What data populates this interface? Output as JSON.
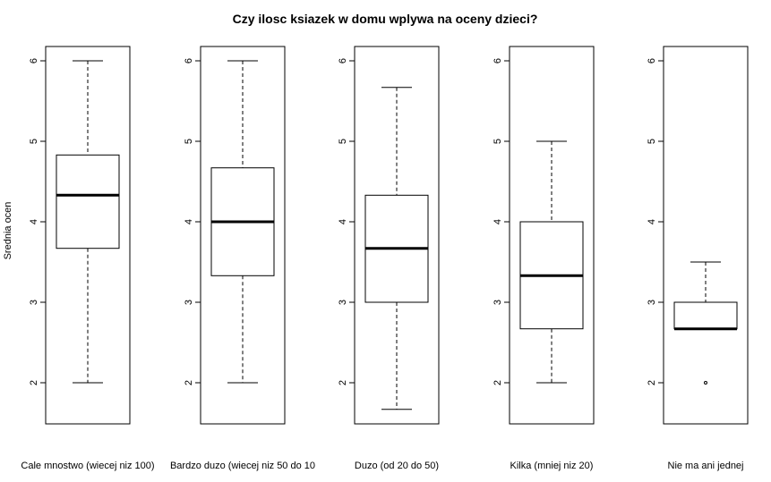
{
  "chart_data": {
    "type": "boxplot",
    "title": "Czy ilosc ksiazek w domu wplywa na oceny dzieci?",
    "ylabel": "Srednia ocen",
    "ylim": [
      1.5,
      6.2
    ],
    "yticks": [
      "2",
      "3",
      "4",
      "5",
      "6"
    ],
    "groups": [
      {
        "label": "Cale mnostwo (wiecej niz 100)",
        "min": 2.0,
        "q1": 3.67,
        "median": 4.33,
        "q3": 4.83,
        "max": 6.0,
        "outliers": []
      },
      {
        "label": "Bardzo duzo (wiecej niz 50 do 10",
        "min": 2.0,
        "q1": 3.33,
        "median": 4.0,
        "q3": 4.67,
        "max": 6.0,
        "outliers": []
      },
      {
        "label": "Duzo (od 20 do 50)",
        "min": 1.67,
        "q1": 3.0,
        "median": 3.67,
        "q3": 4.33,
        "max": 5.67,
        "outliers": []
      },
      {
        "label": "Kilka (mniej niz 20)",
        "min": 2.0,
        "q1": 2.67,
        "median": 3.33,
        "q3": 4.0,
        "max": 5.0,
        "outliers": []
      },
      {
        "label": "Nie ma ani jednej",
        "min": 2.67,
        "q1": 2.67,
        "median": 2.67,
        "q3": 3.0,
        "max": 3.5,
        "outliers": [
          2.0
        ]
      }
    ]
  }
}
